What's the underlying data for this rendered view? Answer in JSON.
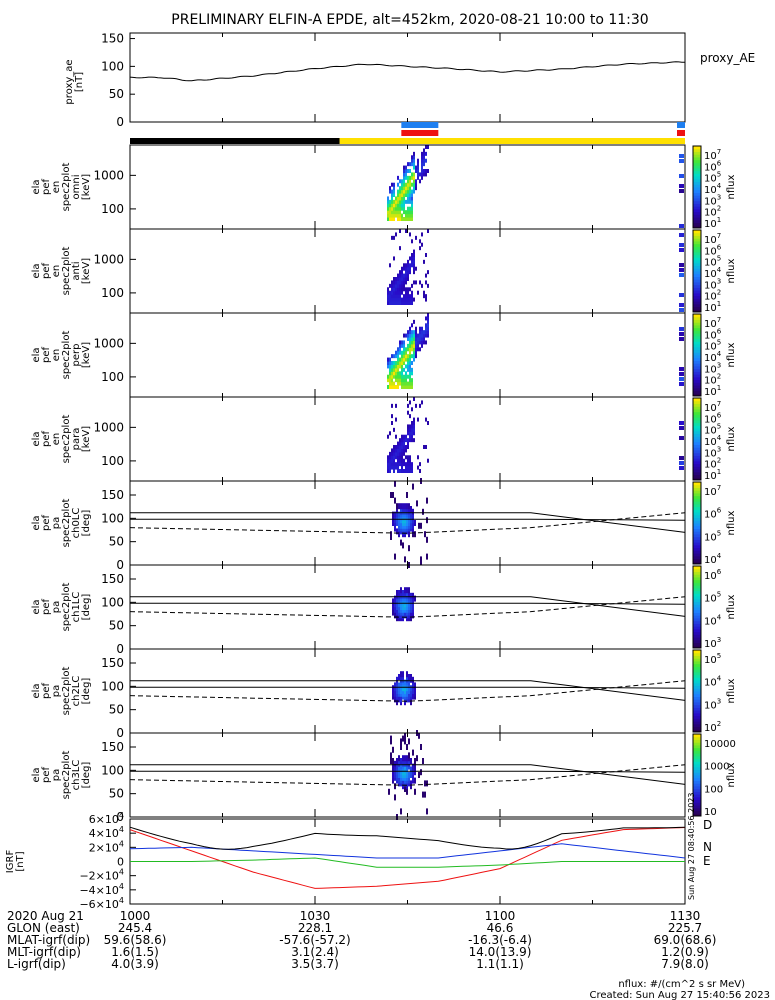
{
  "title": "PRELIMINARY ELFIN-A EPDE, alt=452km, 2020-08-21 10:00 to 11:30",
  "time_ticks": [
    "1000",
    "1030",
    "1100",
    "1130"
  ],
  "ae_panel": {
    "ylabel": [
      "proxy_ae",
      "[nT]"
    ],
    "yticks": [
      "150",
      "100",
      "50",
      "0"
    ],
    "right_label": "proxy_AE"
  },
  "energy_panels": [
    {
      "ylabel": [
        "ela",
        "pef",
        "en",
        "spec2plot",
        "omni",
        "[keV]"
      ],
      "yticks": [
        "1000",
        "100"
      ]
    },
    {
      "ylabel": [
        "ela",
        "pef",
        "en",
        "spec2plot",
        "anti",
        "[keV]"
      ],
      "yticks": [
        "1000",
        "100"
      ]
    },
    {
      "ylabel": [
        "ela",
        "pef",
        "en",
        "spec2plot",
        "perp",
        "[keV]"
      ],
      "yticks": [
        "1000",
        "100"
      ]
    },
    {
      "ylabel": [
        "ela",
        "pef",
        "en",
        "spec2plot",
        "para",
        "[keV]"
      ],
      "yticks": [
        "1000",
        "100"
      ]
    }
  ],
  "pitch_panels": [
    {
      "ylabel": [
        "ela",
        "pef",
        "pa",
        "spec2plot",
        "ch0LC",
        "[deg]"
      ],
      "yticks": [
        "150",
        "100",
        "50",
        "0"
      ]
    },
    {
      "ylabel": [
        "ela",
        "pef",
        "pa",
        "spec2plot",
        "ch1LC",
        "[deg]"
      ],
      "yticks": [
        "150",
        "100",
        "50",
        "0"
      ]
    },
    {
      "ylabel": [
        "ela",
        "pef",
        "pa",
        "spec2plot",
        "ch2LC",
        "[deg]"
      ],
      "yticks": [
        "150",
        "100",
        "50",
        "0"
      ]
    },
    {
      "ylabel": [
        "ela",
        "pef",
        "pa",
        "spec2plot",
        "ch3LC",
        "[deg]"
      ],
      "yticks": [
        "150",
        "100",
        "50",
        "0"
      ]
    }
  ],
  "colorbars": [
    {
      "label": "nflux",
      "ticks": [
        {
          "b": "10",
          "e": "7"
        },
        {
          "b": "10",
          "e": "6"
        },
        {
          "b": "10",
          "e": "5"
        },
        {
          "b": "10",
          "e": "4"
        },
        {
          "b": "10",
          "e": "3"
        },
        {
          "b": "10",
          "e": "2"
        },
        {
          "b": "10",
          "e": "1"
        }
      ]
    },
    {
      "label": "nflux",
      "ticks": [
        {
          "b": "10",
          "e": "7"
        },
        {
          "b": "10",
          "e": "6"
        },
        {
          "b": "10",
          "e": "5"
        },
        {
          "b": "10",
          "e": "4"
        },
        {
          "b": "10",
          "e": "3"
        },
        {
          "b": "10",
          "e": "2"
        },
        {
          "b": "10",
          "e": "1"
        }
      ]
    },
    {
      "label": "nflux",
      "ticks": [
        {
          "b": "10",
          "e": "7"
        },
        {
          "b": "10",
          "e": "6"
        },
        {
          "b": "10",
          "e": "5"
        },
        {
          "b": "10",
          "e": "4"
        },
        {
          "b": "10",
          "e": "3"
        },
        {
          "b": "10",
          "e": "2"
        },
        {
          "b": "10",
          "e": "1"
        }
      ]
    },
    {
      "label": "nflux",
      "ticks": [
        {
          "b": "10",
          "e": "7"
        },
        {
          "b": "10",
          "e": "6"
        },
        {
          "b": "10",
          "e": "5"
        },
        {
          "b": "10",
          "e": "4"
        },
        {
          "b": "10",
          "e": "3"
        },
        {
          "b": "10",
          "e": "2"
        },
        {
          "b": "10",
          "e": "1"
        }
      ]
    },
    {
      "label": "nflux",
      "ticks": [
        {
          "b": "10",
          "e": "7"
        },
        {
          "b": "10",
          "e": "6"
        },
        {
          "b": "10",
          "e": "5"
        },
        {
          "b": "10",
          "e": "4"
        }
      ]
    },
    {
      "label": "nflux",
      "ticks": [
        {
          "b": "10",
          "e": "6"
        },
        {
          "b": "10",
          "e": "5"
        },
        {
          "b": "10",
          "e": "4"
        },
        {
          "b": "10",
          "e": "3"
        }
      ]
    },
    {
      "label": "nflux",
      "ticks": [
        {
          "b": "10",
          "e": "5"
        },
        {
          "b": "10",
          "e": "4"
        },
        {
          "b": "10",
          "e": "3"
        },
        {
          "b": "10",
          "e": "2"
        }
      ]
    },
    {
      "label": "nflux",
      "ticks": [
        {
          "b": "10000",
          "e": ""
        },
        {
          "b": "1000",
          "e": ""
        },
        {
          "b": "100",
          "e": ""
        },
        {
          "b": "10",
          "e": ""
        }
      ]
    }
  ],
  "igrf_panel": {
    "ylabel": [
      "IGRF",
      "[nT]"
    ],
    "yticks": [
      {
        "b": "6×10",
        "e": "4"
      },
      {
        "b": "4×10",
        "e": "4"
      },
      {
        "b": "2×10",
        "e": "4"
      },
      {
        "b": "0",
        "e": ""
      },
      {
        "b": "−2×10",
        "e": "4"
      },
      {
        "b": "−4×10",
        "e": "4"
      },
      {
        "b": "−6×10",
        "e": "4"
      }
    ],
    "legend": [
      "D",
      "N",
      "E"
    ],
    "stamp": "Sun Aug 27 08:40:56 2023"
  },
  "ephemeris": {
    "labels": [
      "2020 Aug 21",
      "GLON (east)",
      "MLAT-igrf(dip)",
      "MLT-igrf(dip)",
      "L-igrf(dip)"
    ],
    "columns": [
      [
        "1000",
        "245.4",
        "59.6(58.6)",
        "1.6(1.5)",
        "4.0(3.9)"
      ],
      [
        "1030",
        "228.1",
        "-57.6(-57.2)",
        "3.1(2.4)",
        "3.5(3.7)"
      ],
      [
        "1100",
        "46.6",
        "-16.3(-6.4)",
        "14.0(13.9)",
        "1.1(1.1)"
      ],
      [
        "1130",
        "225.7",
        "69.0(68.6)",
        "1.2(0.9)",
        "7.9(8.0)"
      ]
    ]
  },
  "footer": {
    "units": "nflux: #/(cm^2 s sr MeV)",
    "created": "Created: Sun Aug 27 15:40:56 2023"
  },
  "colors": {
    "black": "#000000",
    "yellow": "#ffe000",
    "blue": "#1e7ff0",
    "red": "#ee1111",
    "green": "#22bb22",
    "igrf_blue": "#1133dd"
  },
  "chart_data": [
    {
      "type": "line",
      "title": "PRELIMINARY ELFIN-A EPDE, alt=452km, 2020-08-21 10:00 to 11:30",
      "ylabel": "proxy_ae [nT]",
      "ylim": [
        0,
        160
      ],
      "x": [
        "10:00",
        "10:05",
        "10:10",
        "10:20",
        "10:30",
        "10:38",
        "10:45",
        "10:52",
        "11:00",
        "11:10",
        "11:20",
        "11:30"
      ],
      "series": [
        {
          "name": "proxy_AE",
          "values": [
            80,
            80,
            74,
            83,
            96,
            104,
            100,
            96,
            90,
            95,
            104,
            108
          ]
        }
      ]
    },
    {
      "type": "heatmap",
      "panels": [
        "omni",
        "anti",
        "perp",
        "para"
      ],
      "yaxis": "Energy [keV]",
      "colorbar": "nflux",
      "color_range": [
        "10^1",
        "10^7"
      ],
      "active_time_range": [
        "10:45",
        "10:50"
      ]
    },
    {
      "type": "heatmap",
      "panels": [
        "ch0LC",
        "ch1LC",
        "ch2LC",
        "ch3LC"
      ],
      "yaxis": "Pitch angle [deg]",
      "ylim": [
        0,
        180
      ],
      "active_time_range": [
        "10:45",
        "10:50"
      ],
      "peak_pitch_angle": 95
    },
    {
      "type": "line",
      "ylabel": "IGRF [nT]",
      "ylim": [
        -60000,
        60000
      ],
      "x": [
        "10:00",
        "10:10",
        "10:20",
        "10:30",
        "10:40",
        "10:50",
        "11:00",
        "11:10",
        "11:20",
        "11:30"
      ],
      "series": [
        {
          "name": "D",
          "values": [
            45000,
            15000,
            -15000,
            -38000,
            -35000,
            -28000,
            -10000,
            30000,
            45000,
            48000
          ]
        },
        {
          "name": "N",
          "values": [
            18000,
            20000,
            15000,
            10000,
            5000,
            5000,
            15000,
            25000,
            15000,
            5000
          ]
        },
        {
          "name": "E",
          "values": [
            0,
            0,
            2000,
            5000,
            -8000,
            -8000,
            -5000,
            0,
            0,
            0
          ]
        }
      ]
    }
  ]
}
